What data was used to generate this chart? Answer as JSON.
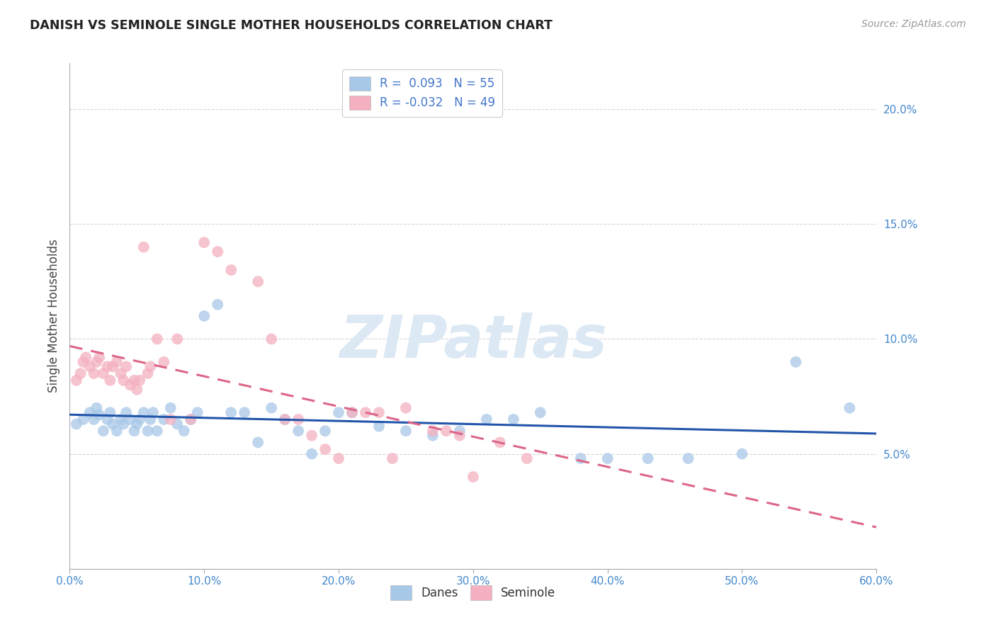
{
  "title": "DANISH VS SEMINOLE SINGLE MOTHER HOUSEHOLDS CORRELATION CHART",
  "source": "Source: ZipAtlas.com",
  "ylabel": "Single Mother Households",
  "xlim": [
    0.0,
    0.6
  ],
  "ylim": [
    0.0,
    0.22
  ],
  "xticks": [
    0.0,
    0.1,
    0.2,
    0.3,
    0.4,
    0.5,
    0.6
  ],
  "xtick_labels": [
    "0.0%",
    "10.0%",
    "20.0%",
    "30.0%",
    "40.0%",
    "50.0%",
    "60.0%"
  ],
  "yticks": [
    0.05,
    0.1,
    0.15,
    0.2
  ],
  "ytick_labels": [
    "5.0%",
    "10.0%",
    "15.0%",
    "20.0%"
  ],
  "grid_color": "#cccccc",
  "background_color": "#ffffff",
  "danes_color": "#a8c8e8",
  "seminole_color": "#f4b0c0",
  "danes_line_color": "#2255aa",
  "seminole_line_color": "#dd6688",
  "danes_R": 0.093,
  "danes_N": 55,
  "seminole_R": -0.032,
  "seminole_N": 49,
  "watermark": "ZIPatlas",
  "legend_text_color": "#333333",
  "legend_R_color": "#4477cc",
  "tick_color": "#4488cc",
  "danes_x": [
    0.005,
    0.01,
    0.015,
    0.018,
    0.02,
    0.022,
    0.025,
    0.028,
    0.03,
    0.032,
    0.035,
    0.038,
    0.04,
    0.042,
    0.045,
    0.048,
    0.05,
    0.052,
    0.055,
    0.058,
    0.06,
    0.062,
    0.065,
    0.07,
    0.075,
    0.08,
    0.085,
    0.09,
    0.095,
    0.1,
    0.11,
    0.12,
    0.13,
    0.14,
    0.15,
    0.16,
    0.17,
    0.18,
    0.19,
    0.2,
    0.21,
    0.23,
    0.25,
    0.27,
    0.29,
    0.31,
    0.33,
    0.35,
    0.38,
    0.4,
    0.43,
    0.46,
    0.5,
    0.54,
    0.58
  ],
  "danes_y": [
    0.063,
    0.065,
    0.068,
    0.065,
    0.07,
    0.067,
    0.06,
    0.065,
    0.068,
    0.063,
    0.06,
    0.065,
    0.063,
    0.068,
    0.065,
    0.06,
    0.063,
    0.065,
    0.068,
    0.06,
    0.065,
    0.068,
    0.06,
    0.065,
    0.07,
    0.063,
    0.06,
    0.065,
    0.068,
    0.11,
    0.115,
    0.068,
    0.068,
    0.055,
    0.07,
    0.065,
    0.06,
    0.05,
    0.06,
    0.068,
    0.068,
    0.062,
    0.06,
    0.058,
    0.06,
    0.065,
    0.065,
    0.068,
    0.048,
    0.048,
    0.048,
    0.048,
    0.05,
    0.09,
    0.07
  ],
  "seminole_x": [
    0.005,
    0.008,
    0.01,
    0.012,
    0.015,
    0.018,
    0.02,
    0.022,
    0.025,
    0.028,
    0.03,
    0.032,
    0.035,
    0.038,
    0.04,
    0.042,
    0.045,
    0.048,
    0.05,
    0.052,
    0.055,
    0.058,
    0.06,
    0.065,
    0.07,
    0.075,
    0.08,
    0.09,
    0.1,
    0.11,
    0.12,
    0.14,
    0.15,
    0.16,
    0.17,
    0.18,
    0.19,
    0.2,
    0.21,
    0.22,
    0.23,
    0.24,
    0.25,
    0.27,
    0.28,
    0.29,
    0.3,
    0.32,
    0.34
  ],
  "seminole_y": [
    0.082,
    0.085,
    0.09,
    0.092,
    0.088,
    0.085,
    0.09,
    0.092,
    0.085,
    0.088,
    0.082,
    0.088,
    0.09,
    0.085,
    0.082,
    0.088,
    0.08,
    0.082,
    0.078,
    0.082,
    0.14,
    0.085,
    0.088,
    0.1,
    0.09,
    0.065,
    0.1,
    0.065,
    0.142,
    0.138,
    0.13,
    0.125,
    0.1,
    0.065,
    0.065,
    0.058,
    0.052,
    0.048,
    0.068,
    0.068,
    0.068,
    0.048,
    0.07,
    0.06,
    0.06,
    0.058,
    0.04,
    0.055,
    0.048
  ]
}
